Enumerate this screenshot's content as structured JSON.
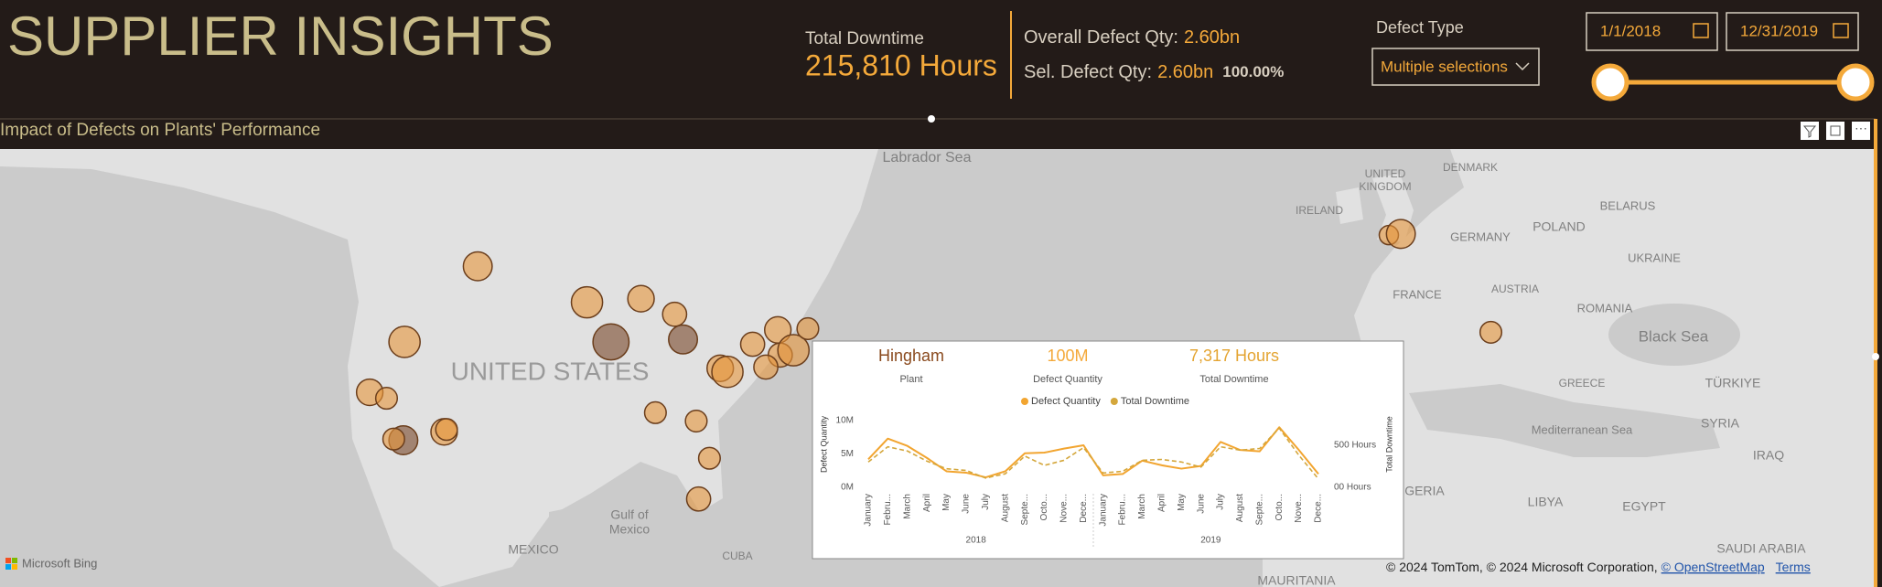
{
  "header": {
    "title": "SUPPLIER INSIGHTS",
    "total_downtime_label": "Total Downtime",
    "total_downtime_value": "215,810 Hours",
    "overall_defect_label": "Overall Defect Qty:",
    "overall_defect_value": "2.60bn",
    "selected_defect_label": "Sel. Defect Qty:",
    "selected_defect_value": "2.60bn",
    "selected_defect_percent": "100.00%",
    "defect_type_label": "Defect Type",
    "defect_type_value": "Multiple selections",
    "start_date": "1/1/2018",
    "end_date": "12/31/2019"
  },
  "map": {
    "title": "Impact of Defects on Plants' Performance",
    "labels": [
      "Labrador Sea",
      "UNITED STATES",
      "Gulf of",
      "Mexico",
      "MEXICO",
      "CUBA",
      "UNITED",
      "KINGDOM",
      "DENMARK",
      "BELARUS",
      "IRELAND",
      "POLAND",
      "GERMANY",
      "UKRAINE",
      "FRANCE",
      "AUSTRIA",
      "ROMANIA",
      "Black Sea",
      "TÜRKIYE",
      "GREECE",
      "SYRIA",
      "IRAQ",
      "Mediterranean Sea",
      "LIBYA",
      "EGYPT",
      "SAUDI ARABIA",
      "MAURITANIA",
      "GERIA"
    ],
    "bing": "Microsoft Bing",
    "copyright": "© 2024 TomTom, © 2024 Microsoft Corporation,",
    "osm": "© OpenStreetMap",
    "terms": "Terms"
  },
  "tooltip": {
    "plant": "Hingham",
    "plant_label": "Plant",
    "defect_quantity": "100M",
    "defect_quantity_label": "Defect Quantity",
    "total_downtime": "7,317 Hours",
    "total_downtime_label": "Total Downtime"
  },
  "chart_data": {
    "type": "line",
    "categories": [
      "January",
      "Febru...",
      "March",
      "April",
      "May",
      "June",
      "July",
      "August",
      "Septe...",
      "Octo...",
      "Nove...",
      "Dece...",
      "January",
      "Febru...",
      "March",
      "April",
      "May",
      "June",
      "July",
      "August",
      "Septe...",
      "Octo...",
      "Nove...",
      "Dece..."
    ],
    "years": [
      "2018",
      "2019"
    ],
    "y_label": "Defect Quantity",
    "y2_label": "Total Downtime",
    "ylim": [
      0,
      10
    ],
    "yticks": [
      {
        "value": 0,
        "label": "0M"
      },
      {
        "value": 5,
        "label": "5M"
      },
      {
        "value": 10,
        "label": "10M"
      }
    ],
    "y2lim": [
      0,
      790
    ],
    "y2ticks": [
      {
        "value": 0,
        "label": "00 Hours"
      },
      {
        "value": 500,
        "label": "500 Hours"
      }
    ],
    "series": [
      {
        "name": "Defect Quantity",
        "color": "#f2a530",
        "values": [
          4.2,
          7.3,
          6.2,
          4.4,
          2.4,
          2.2,
          1.5,
          2.4,
          5.1,
          5.2,
          5.8,
          6.3,
          1.8,
          2.0,
          4.0,
          3.3,
          2.8,
          3.2,
          6.8,
          5.6,
          5.4,
          9.0,
          5.6,
          2.0
        ]
      },
      {
        "name": "Total Downtime",
        "color": "#d4a73c",
        "axis": "y2",
        "values": [
          300,
          480,
          430,
          310,
          220,
          200,
          110,
          160,
          370,
          260,
          320,
          470,
          170,
          190,
          320,
          330,
          300,
          240,
          480,
          440,
          460,
          700,
          380,
          100
        ]
      }
    ]
  }
}
